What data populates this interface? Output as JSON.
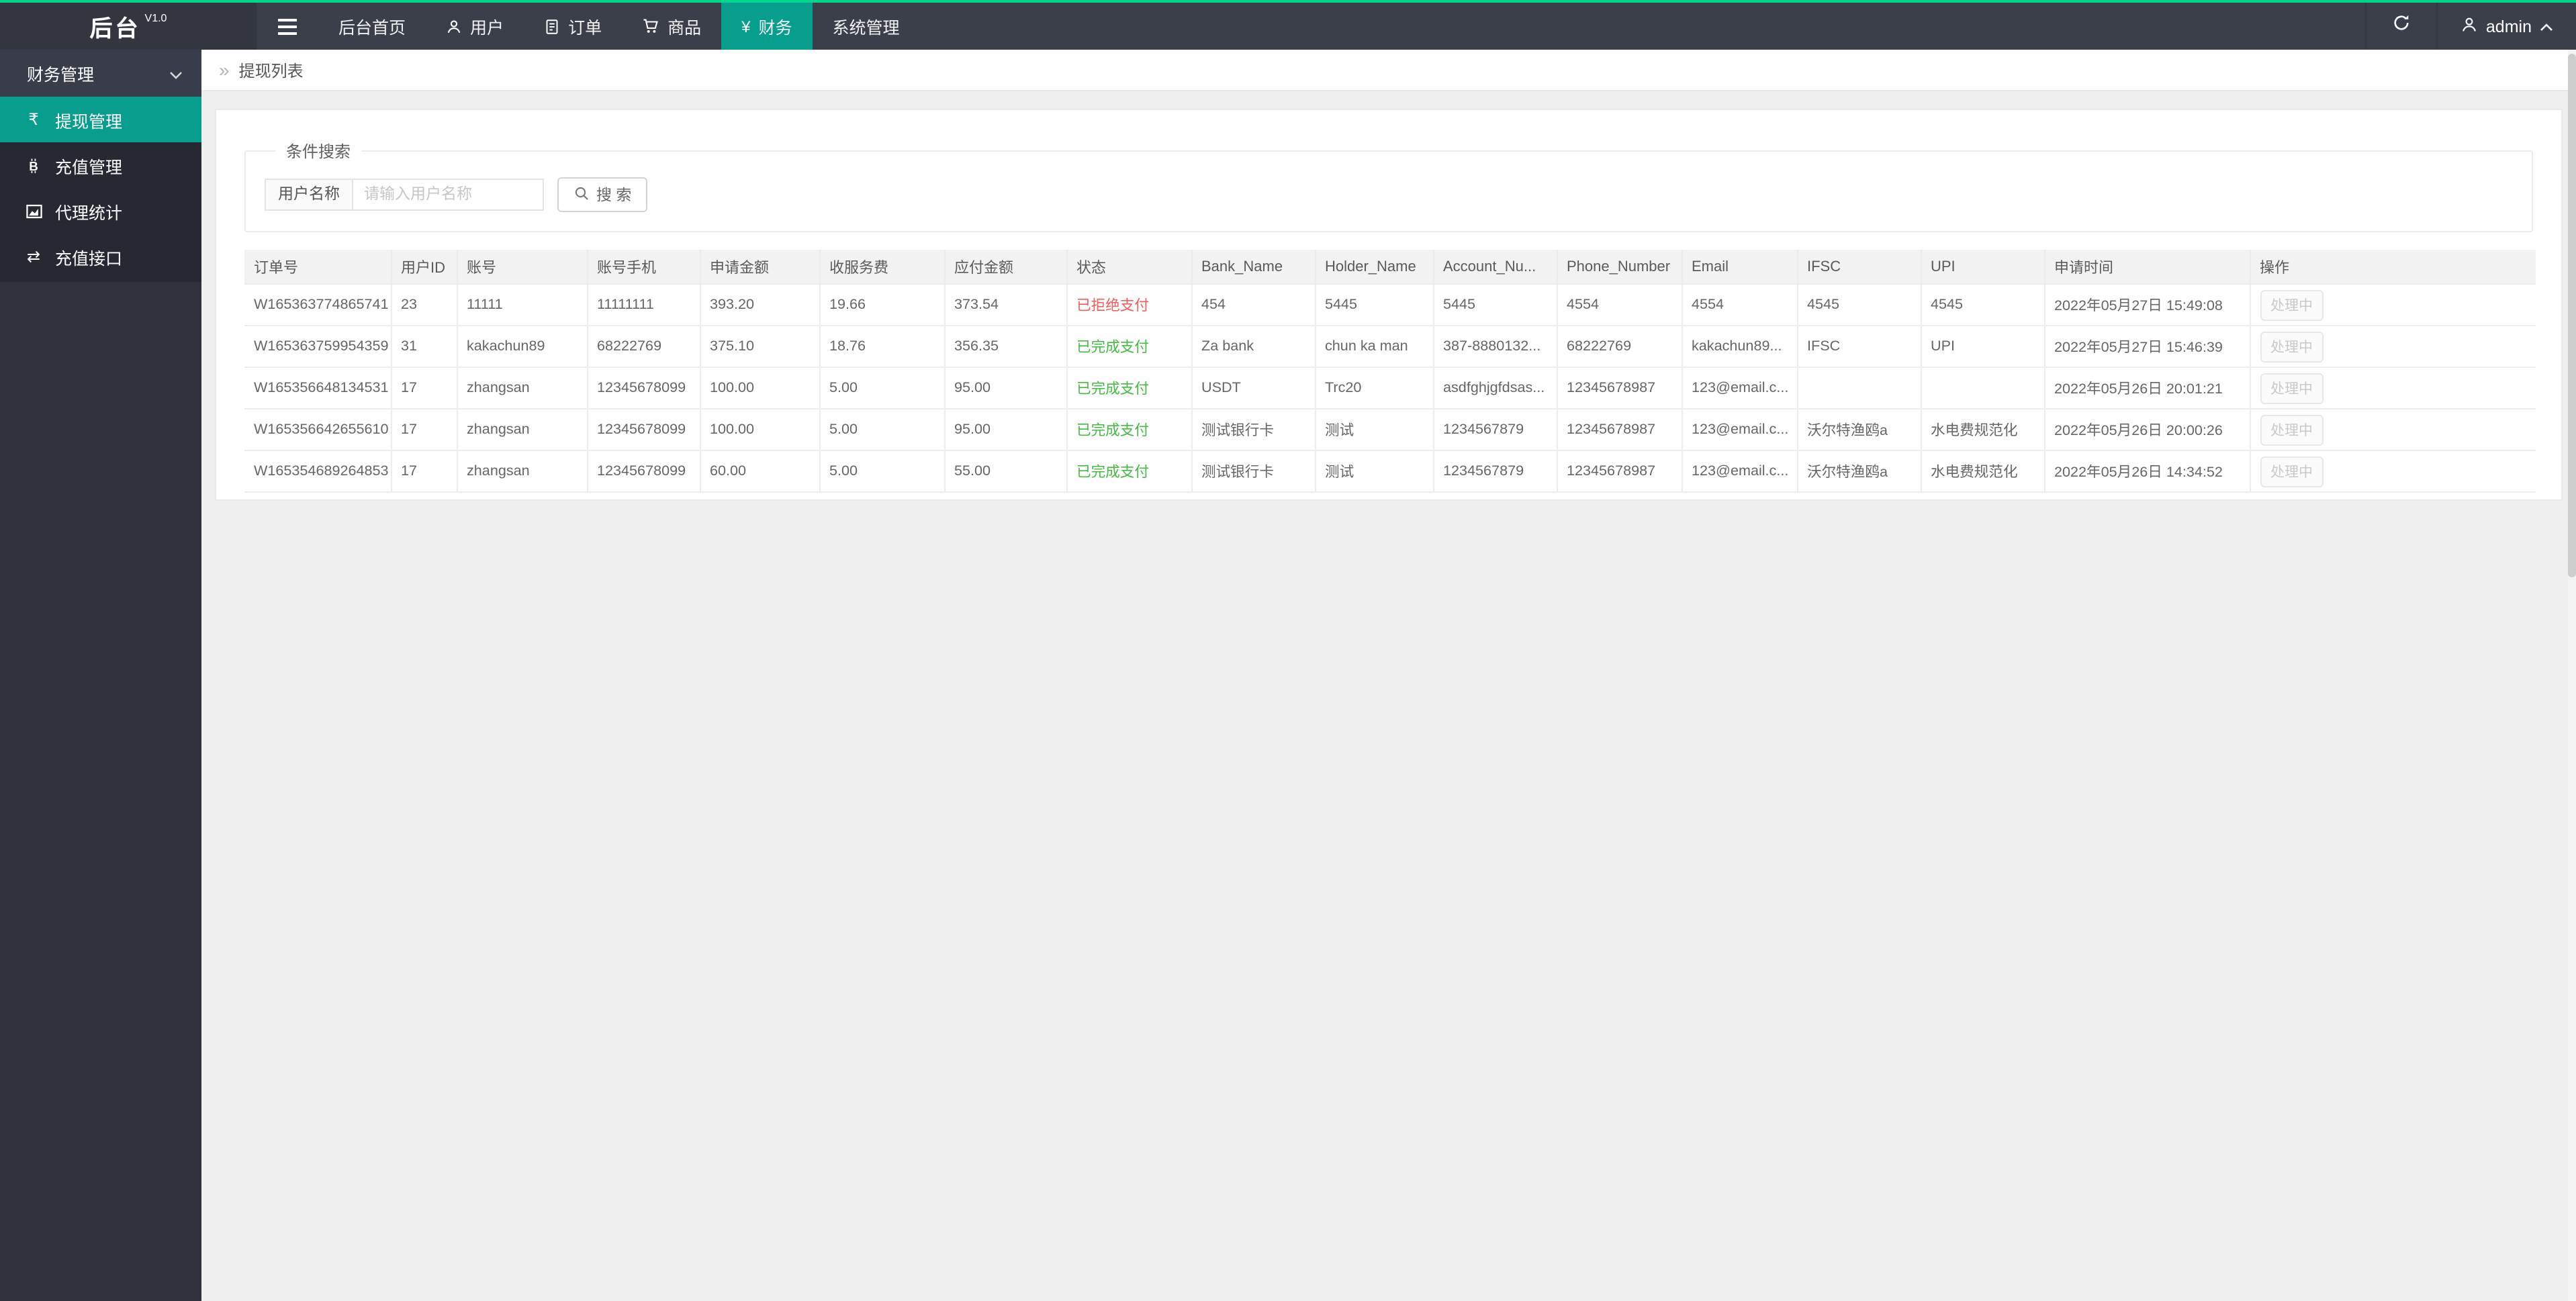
{
  "navbar": {
    "brand": "后台",
    "version": "V1.0",
    "items": [
      {
        "key": "home",
        "label": "后台首页",
        "icon": null,
        "active": false
      },
      {
        "key": "users",
        "label": "用户",
        "icon": "user-icon",
        "active": false
      },
      {
        "key": "orders",
        "label": "订单",
        "icon": "document-icon",
        "active": false
      },
      {
        "key": "goods",
        "label": "商品",
        "icon": "cart-icon",
        "active": false
      },
      {
        "key": "finance",
        "label": "财务",
        "icon": "yen-icon",
        "active": true
      },
      {
        "key": "system",
        "label": "系统管理",
        "icon": null,
        "active": false
      }
    ],
    "user": "admin"
  },
  "sidebar": {
    "group": "财务管理",
    "items": [
      {
        "key": "withdraw-management",
        "label": "提现管理",
        "icon": "rupee-icon",
        "active": true
      },
      {
        "key": "recharge-management",
        "label": "充值管理",
        "icon": "bitcoin-icon",
        "active": false
      },
      {
        "key": "agent-stats",
        "label": "代理统计",
        "icon": "chart-icon",
        "active": false
      },
      {
        "key": "recharge-api",
        "label": "充值接口",
        "icon": "swap-icon",
        "active": false
      }
    ]
  },
  "breadcrumb": "提现列表",
  "search": {
    "legend": "条件搜索",
    "label": "用户名称",
    "placeholder": "请输入用户名称",
    "button": "搜 索"
  },
  "table": {
    "headers": [
      "订单号",
      "用户ID",
      "账号",
      "账号手机",
      "申请金额",
      "收服务费",
      "应付金额",
      "状态",
      "Bank_Name",
      "Holder_Name",
      "Account_Nu...",
      "Phone_Number",
      "Email",
      "IFSC",
      "UPI",
      "申请时间",
      "操作"
    ],
    "op_label": "处理中",
    "rows": [
      {
        "order_no": "W165363774865741",
        "user_id": "23",
        "account": "11111",
        "account_phone": "11111111",
        "apply_amount": "393.20",
        "service_fee": "19.66",
        "payable_amount": "373.54",
        "status": "已拒绝支付",
        "status_type": "rejected",
        "bank_name": "454",
        "holder_name": "5445",
        "account_number": "5445",
        "phone_number": "4554",
        "email": "4554",
        "ifsc": "4545",
        "upi": "4545",
        "apply_time": "2022年05月27日 15:49:08"
      },
      {
        "order_no": "W165363759954359",
        "user_id": "31",
        "account": "kakachun89",
        "account_phone": "68222769",
        "apply_amount": "375.10",
        "service_fee": "18.76",
        "payable_amount": "356.35",
        "status": "已完成支付",
        "status_type": "completed",
        "bank_name": "Za bank",
        "holder_name": "chun ka man",
        "account_number": "387-8880132...",
        "phone_number": "68222769",
        "email": "kakachun89...",
        "ifsc": "IFSC",
        "upi": "UPI",
        "apply_time": "2022年05月27日 15:46:39"
      },
      {
        "order_no": "W165356648134531",
        "user_id": "17",
        "account": "zhangsan",
        "account_phone": "12345678099",
        "apply_amount": "100.00",
        "service_fee": "5.00",
        "payable_amount": "95.00",
        "status": "已完成支付",
        "status_type": "completed",
        "bank_name": "USDT",
        "holder_name": "Trc20",
        "account_number": "asdfghjgfdsas...",
        "phone_number": "12345678987",
        "email": "123@email.c...",
        "ifsc": "",
        "upi": "",
        "apply_time": "2022年05月26日 20:01:21"
      },
      {
        "order_no": "W165356642655610",
        "user_id": "17",
        "account": "zhangsan",
        "account_phone": "12345678099",
        "apply_amount": "100.00",
        "service_fee": "5.00",
        "payable_amount": "95.00",
        "status": "已完成支付",
        "status_type": "completed",
        "bank_name": "测试银行卡",
        "holder_name": "测试",
        "account_number": "1234567879",
        "phone_number": "12345678987",
        "email": "123@email.c...",
        "ifsc": "沃尔特渔鸥a",
        "upi": "水电费规范化",
        "apply_time": "2022年05月26日 20:00:26"
      },
      {
        "order_no": "W165354689264853",
        "user_id": "17",
        "account": "zhangsan",
        "account_phone": "12345678099",
        "apply_amount": "60.00",
        "service_fee": "5.00",
        "payable_amount": "55.00",
        "status": "已完成支付",
        "status_type": "completed",
        "bank_name": "测试银行卡",
        "holder_name": "测试",
        "account_number": "1234567879",
        "phone_number": "12345678987",
        "email": "123@email.c...",
        "ifsc": "沃尔特渔鸥a",
        "upi": "水电费规范化",
        "apply_time": "2022年05月26日 14:34:52"
      }
    ]
  },
  "icons": {
    "yen-icon": "¥",
    "rupee-icon": "₹",
    "swap-icon": "⇄",
    "breadcrumb-icon": "»"
  },
  "colors": {
    "accent_teal": "#089e8e",
    "topline_green": "#00d68a",
    "header_dark": "#3b3f4a",
    "status_completed": "#42bd41",
    "status_rejected": "#fa5a5a"
  }
}
